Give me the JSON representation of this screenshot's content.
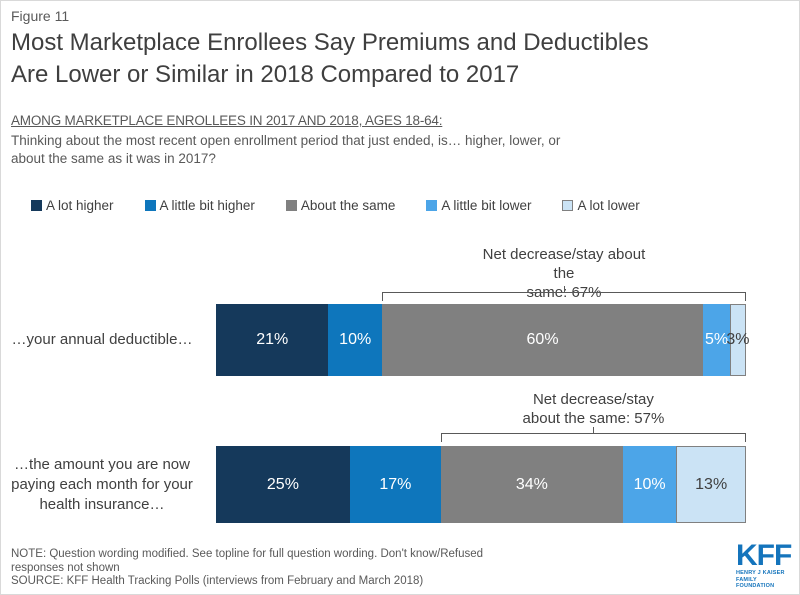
{
  "figure_label": "Figure 11",
  "title": "Most Marketplace Enrollees Say Premiums and Deductibles\nAre Lower or Similar in 2018 Compared to 2017",
  "subtitle_heading": "AMONG MARKETPLACE ENROLLEES IN 2017 AND 2018, AGES 18-64:",
  "subtitle_question": "Thinking about the most recent open enrollment period that just ended, is… higher, lower, or\nabout the same as it was in 2017?",
  "chart_data": {
    "type": "bar",
    "stacked": true,
    "orientation": "horizontal",
    "unit": "%",
    "legend_position": "top",
    "grid": false,
    "legend": [
      {
        "label": "A lot higher",
        "color": "#15395b",
        "text_color": "#ffffff"
      },
      {
        "label": "A little bit higher",
        "color": "#0e76bc",
        "text_color": "#ffffff"
      },
      {
        "label": "About the same",
        "color": "#808080",
        "text_color": "#ffffff"
      },
      {
        "label": "A little bit lower",
        "color": "#4ca5e8",
        "text_color": "#ffffff"
      },
      {
        "label": "A lot lower",
        "color": "#cbe3f5",
        "text_color": "#404040",
        "border": "#808080"
      }
    ],
    "net_span_start_index": 2,
    "rows": [
      {
        "category": "…your annual deductible…",
        "values": [
          21,
          10,
          60,
          5,
          3
        ],
        "labels": [
          "21%",
          "10%",
          "60%",
          "5%",
          "3%"
        ],
        "annotation": "Net decrease/stay about the\nsame: 67%"
      },
      {
        "category": "…the amount you are now\npaying each month for your\nhealth insurance…",
        "values": [
          25,
          17,
          34,
          10,
          13
        ],
        "labels": [
          "25%",
          "17%",
          "34%",
          "10%",
          "13%"
        ],
        "annotation": "Net decrease/stay\nabout the same: 57%"
      }
    ]
  },
  "footer": {
    "note": "NOTE: Question wording modified. See topline for full question wording. Don't know/Refused\nresponses not shown",
    "source": "SOURCE: KFF Health Tracking Polls (interviews from February and March 2018)"
  },
  "logo": {
    "text": "KFF",
    "sub_line1": "HENRY J KAISER",
    "sub_line2": "FAMILY FOUNDATION",
    "color": "#1474bc"
  }
}
